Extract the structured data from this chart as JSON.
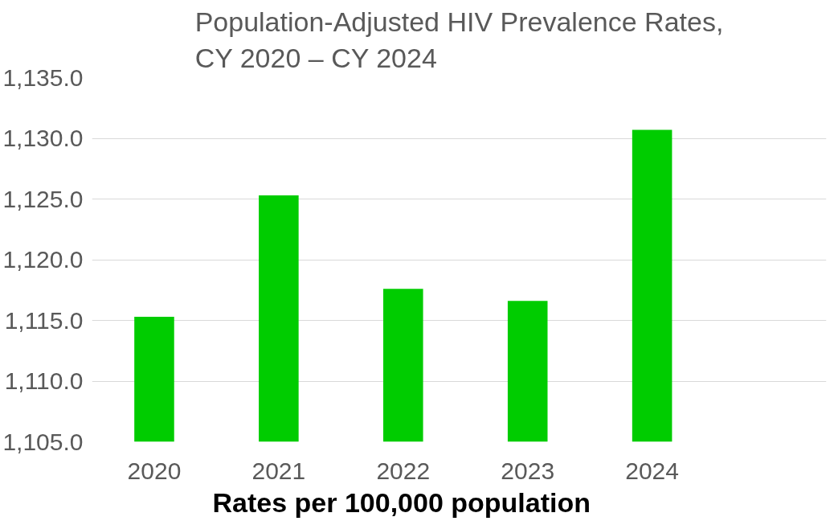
{
  "chart_data": {
    "type": "bar",
    "title": "Population-Adjusted HIV Prevalence Rates,\nCY 2020 – CY 2024",
    "categories": [
      "2020",
      "2021",
      "2022",
      "2023",
      "2024"
    ],
    "values": [
      1115.3,
      1125.3,
      1117.6,
      1116.6,
      1130.7
    ],
    "color": "#00cc00",
    "ylim": [
      1105,
      1135
    ],
    "yticks": [
      {
        "value": 1105,
        "label": "1,105.0"
      },
      {
        "value": 1110,
        "label": "1,110.0"
      },
      {
        "value": 1115,
        "label": "1,115.0"
      },
      {
        "value": 1120,
        "label": "1,120.0"
      },
      {
        "value": 1125,
        "label": "1,125.0"
      },
      {
        "value": 1130,
        "label": "1,130.0"
      },
      {
        "value": 1135,
        "label": "1,135.0"
      }
    ],
    "grid": "y",
    "annotations": [
      "Rates per 100,000 population"
    ]
  }
}
